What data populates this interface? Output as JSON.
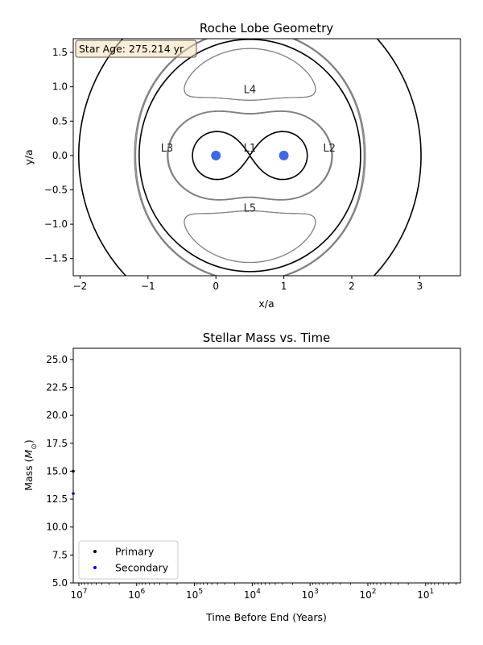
{
  "chart_data": [
    {
      "type": "line",
      "title": "Roche Lobe Geometry",
      "xlabel": "x/a",
      "ylabel": "y/a",
      "xlim": [
        -2.1,
        3.6
      ],
      "ylim": [
        -1.75,
        1.7
      ],
      "xticks": [
        -2,
        -1,
        0,
        1,
        2,
        3
      ],
      "xtick_labels": [
        "−2",
        "−1",
        "0",
        "1",
        "2",
        "3"
      ],
      "yticks": [
        -1.5,
        -1.0,
        -0.5,
        0.0,
        0.5,
        1.0,
        1.5
      ],
      "ytick_labels": [
        "−1.5",
        "−1.0",
        "−0.5",
        "0.0",
        "0.5",
        "1.0",
        "1.5"
      ],
      "annotation": "Star Age: 275.214 yr",
      "center_of_mass_x": 0.5,
      "stars": [
        {
          "x": 0.0,
          "y": 0.0,
          "color": "#4169e1"
        },
        {
          "x": 1.0,
          "y": 0.0,
          "color": "#4169e1"
        }
      ],
      "contours": [
        {
          "level": "inner-figure-eight",
          "color": "#000000",
          "half_width": 0.93,
          "y_max": 0.38
        },
        {
          "level": "L2-L3-surface",
          "color": "#808080"
        },
        {
          "level": "L4-L5-surface",
          "color": "#808080",
          "y_max": 1.48
        },
        {
          "level": "outer",
          "color": "#000000",
          "rx": 1.63,
          "ry": 1.69
        }
      ],
      "lagrange_points": [
        {
          "label": "L1",
          "x": 0.5,
          "y": 0.06
        },
        {
          "label": "L2",
          "x": 1.67,
          "y": 0.06
        },
        {
          "label": "L3",
          "x": -0.72,
          "y": 0.06
        },
        {
          "label": "L4",
          "x": 0.5,
          "y": 0.91
        },
        {
          "label": "L5",
          "x": 0.5,
          "y": -0.82
        }
      ]
    },
    {
      "type": "scatter",
      "title": "Stellar Mass vs. Time",
      "xlabel": "Time Before End (Years)",
      "ylabel": "Mass (",
      "ylabel_symbol": "M",
      "ylabel_sub": "⊙",
      "ylabel_close": ")",
      "xscale": "log",
      "x_inverted": true,
      "xlim": [
        12500000.0,
        2.5
      ],
      "ylim": [
        5.0,
        26.0
      ],
      "xticks": [
        10000000.0,
        1000000.0,
        100000.0,
        10000.0,
        1000.0,
        100.0,
        10.0
      ],
      "xtick_mantissa": "10",
      "xtick_exponents": [
        "7",
        "6",
        "5",
        "4",
        "3",
        "2",
        "1"
      ],
      "yticks": [
        5.0,
        7.5,
        10.0,
        12.5,
        15.0,
        17.5,
        20.0,
        22.5,
        25.0
      ],
      "ytick_labels": [
        "5.0",
        "7.5",
        "10.0",
        "12.5",
        "15.0",
        "17.5",
        "20.0",
        "22.5",
        "25.0"
      ],
      "legend": "lower-left",
      "series": [
        {
          "name": "Primary",
          "color": "#000000",
          "points": [
            {
              "x": 12500000.0,
              "y": 15.0
            }
          ]
        },
        {
          "name": "Secondary",
          "color": "#0000ff",
          "points": [
            {
              "x": 12500000.0,
              "y": 13.0
            }
          ]
        }
      ]
    }
  ]
}
